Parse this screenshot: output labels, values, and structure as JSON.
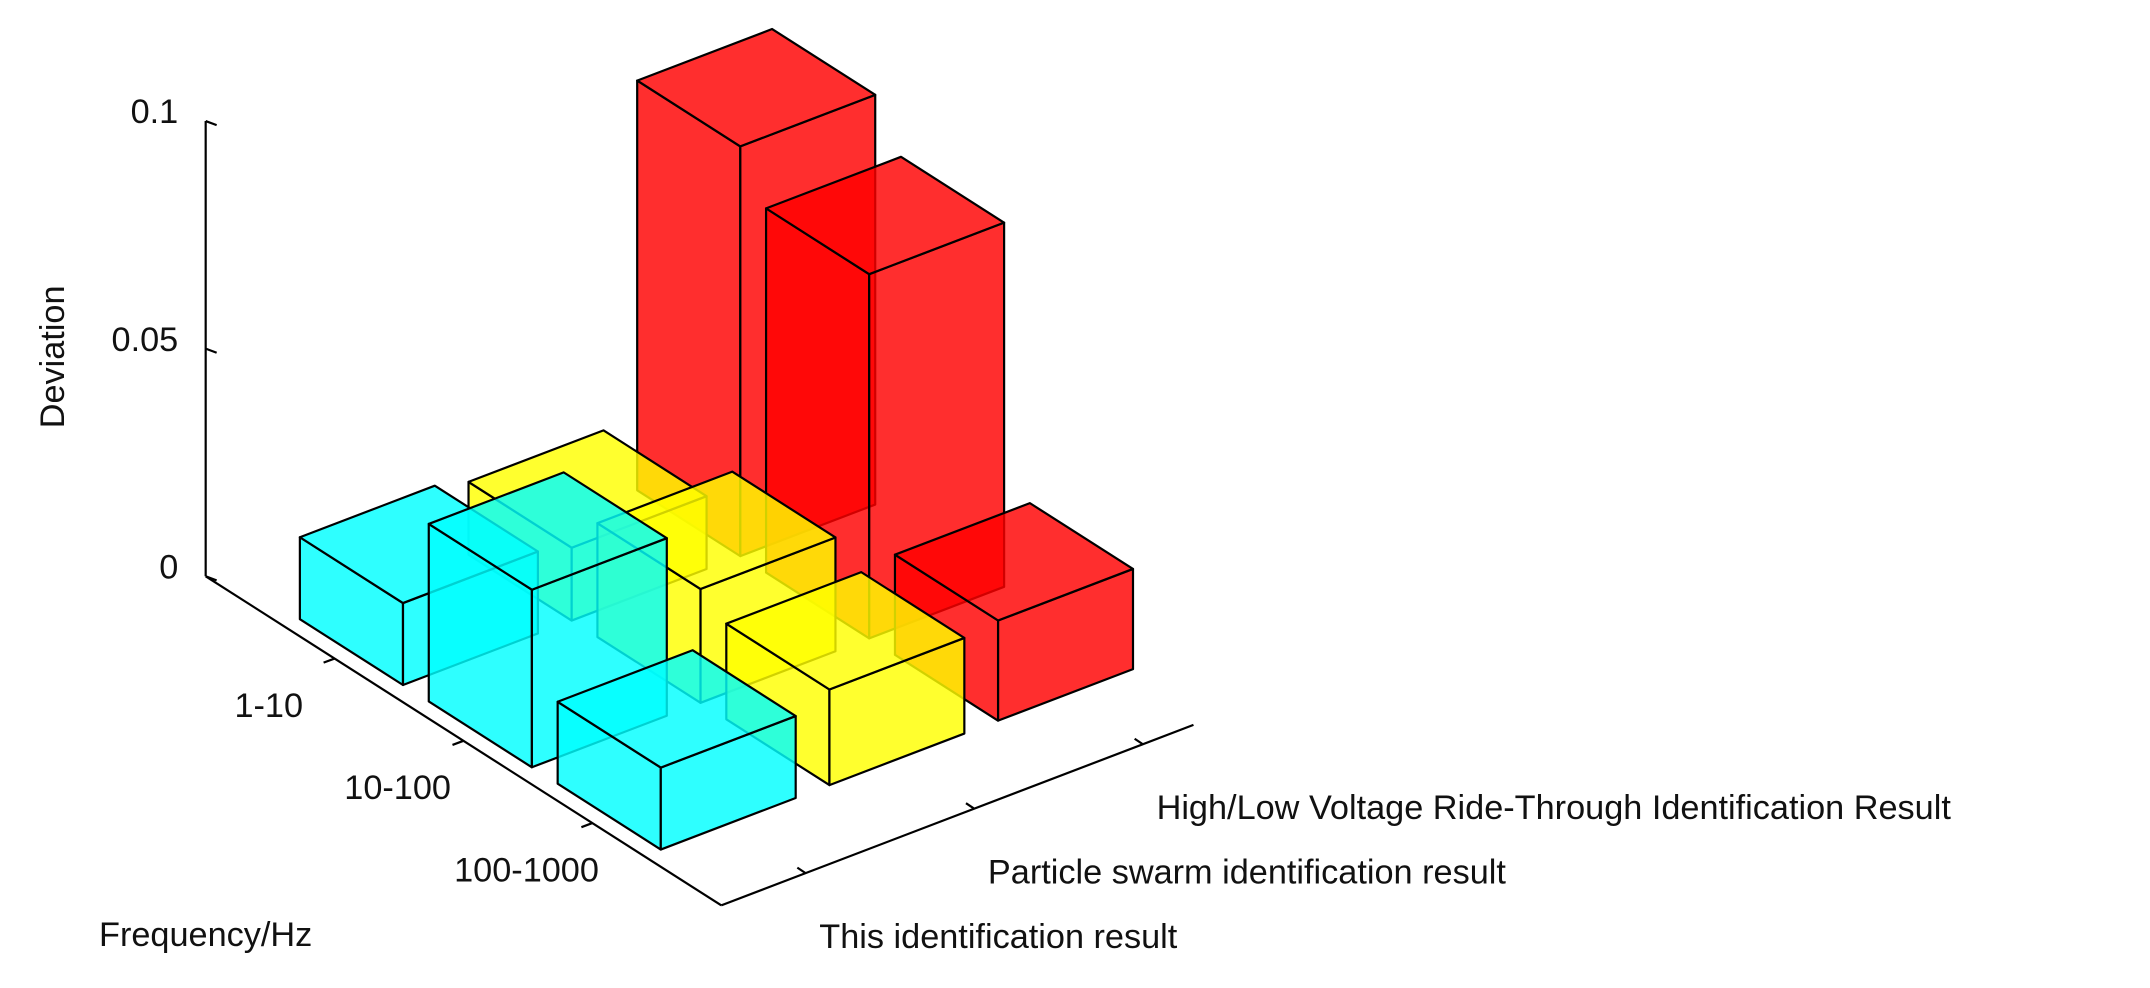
{
  "chart_data": {
    "type": "bar3d",
    "ylabel": "Deviation",
    "xlabel": "Frequency/Hz",
    "categories": [
      "1-10",
      "10-100",
      "100-1000"
    ],
    "series": [
      {
        "name": "This identification result",
        "color": "#00ffff",
        "values": [
          0.018,
          0.039,
          0.018
        ]
      },
      {
        "name": "Particle swarm identification result",
        "color": "#ffff00",
        "values": [
          0.016,
          0.025,
          0.021
        ]
      },
      {
        "name": "High/Low Voltage Ride-Through Identification Result",
        "color": "#ff0000",
        "values": [
          0.09,
          0.08,
          0.022
        ]
      }
    ],
    "ylim": [
      0,
      0.1
    ],
    "yticks": [
      0,
      0.05,
      0.1
    ]
  }
}
